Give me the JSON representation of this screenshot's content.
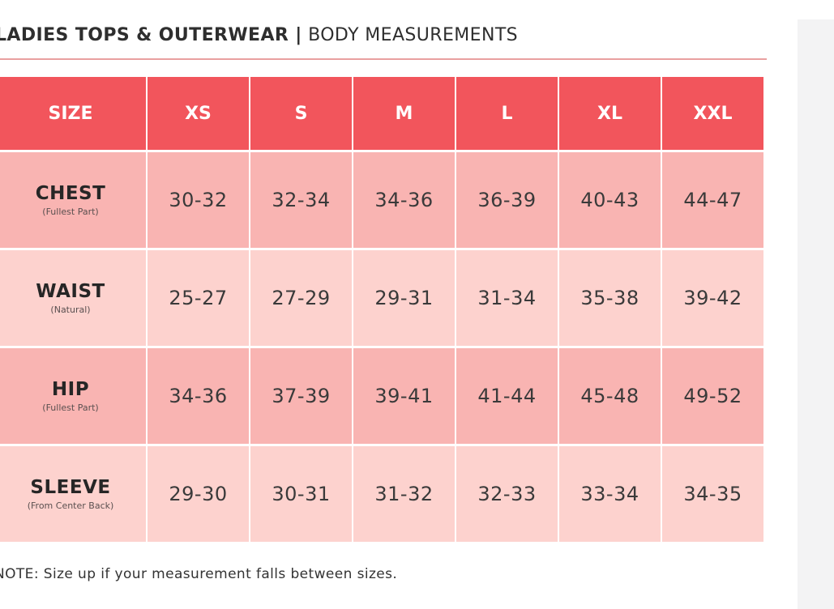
{
  "header": {
    "title_bold": "LADIES TOPS & OUTERWEAR |",
    "title_light": " BODY MEASUREMENTS"
  },
  "table": {
    "header_label": "SIZE",
    "sizes": [
      "XS",
      "S",
      "M",
      "L",
      "XL",
      "XXL"
    ],
    "rows": [
      {
        "name": "CHEST",
        "sub": "(Fullest Part)",
        "values": [
          "30-32",
          "32-34",
          "34-36",
          "36-39",
          "40-43",
          "44-47"
        ]
      },
      {
        "name": "WAIST",
        "sub": "(Natural)",
        "values": [
          "25-27",
          "27-29",
          "29-31",
          "31-34",
          "35-38",
          "39-42"
        ]
      },
      {
        "name": "HIP",
        "sub": "(Fullest Part)",
        "values": [
          "34-36",
          "37-39",
          "39-41",
          "41-44",
          "45-48",
          "49-52"
        ]
      },
      {
        "name": "SLEEVE",
        "sub": "(From Center Back)",
        "values": [
          "29-30",
          "30-31",
          "31-32",
          "32-33",
          "33-34",
          "34-35"
        ]
      }
    ]
  },
  "note": "NOTE: Size up if your measurement falls between sizes.",
  "colors": {
    "header_bg": "#f2555c",
    "row_dark": "#f9b4b2",
    "row_light": "#fdd2ce",
    "title_rule": "#e9a0a0"
  }
}
